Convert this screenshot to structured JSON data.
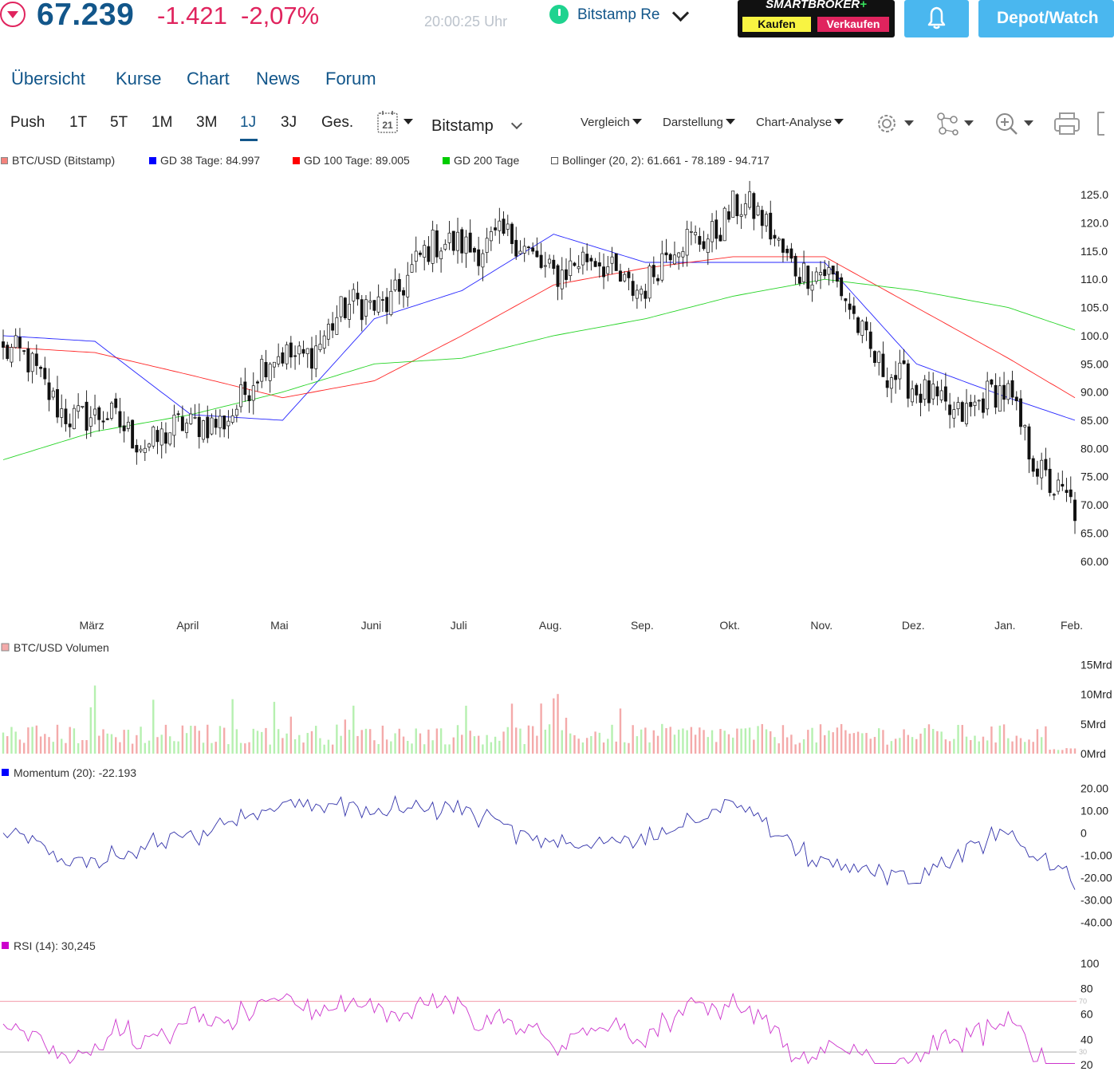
{
  "header": {
    "price": "67.239",
    "change_abs": "-1.421",
    "change_pct": "-2,07%",
    "time": "20:00:25 Uhr",
    "exchange": "Bitstamp Re",
    "smartbroker": {
      "title": "SMARTBROKER",
      "plus": "+",
      "buy": "Kaufen",
      "sell": "Verkaufen"
    },
    "depot_button": "Depot/Watch",
    "colors": {
      "brand": "#12568a",
      "negative": "#e0245e",
      "accent": "#4ab7ef",
      "live": "#1fd38f"
    }
  },
  "nav": {
    "items": [
      "Übersicht",
      "Kurse",
      "Chart",
      "News",
      "Forum"
    ]
  },
  "toolbar": {
    "ranges": [
      "Push",
      "1T",
      "5T",
      "1M",
      "3M",
      "1J",
      "3J",
      "Ges."
    ],
    "active_range": "1J",
    "calendar_day": "21",
    "exchange_select": "Bitstamp",
    "menus": [
      "Vergleich",
      "Darstellung",
      "Chart-Analyse"
    ],
    "icons": [
      "gear-icon",
      "network-icon",
      "zoom-icon",
      "print-icon"
    ]
  },
  "legend": [
    {
      "label": "BTC/USD (Bitstamp)",
      "color": "#f4837d"
    },
    {
      "label": "GD 38 Tage: 84.997",
      "color": "#0000ff"
    },
    {
      "label": "GD 100 Tage: 89.005",
      "color": "#ff0000"
    },
    {
      "label": "GD 200 Tage",
      "color": "#00cc00"
    },
    {
      "label": "Bollinger (20, 2): 61.661 - 78.189 - 94.717",
      "color": "#ffffff"
    }
  ],
  "chart_data": [
    {
      "type": "candlestick",
      "title": "BTC/USD (Bitstamp)",
      "ylim": [
        57,
        127
      ],
      "y_ticks": [
        "125.0",
        "120.0",
        "115.0",
        "110.0",
        "105.0",
        "100.0",
        "95.00",
        "90.00",
        "85.00",
        "80.00",
        "75.00",
        "70.00",
        "65.00",
        "60.00"
      ],
      "y_tick_values": [
        125,
        120,
        115,
        110,
        105,
        100,
        95,
        90,
        85,
        80,
        75,
        70,
        65,
        60
      ],
      "x_labels": [
        "März",
        "April",
        "Mai",
        "Juni",
        "Juli",
        "Aug.",
        "Sep.",
        "Okt.",
        "Nov.",
        "Dez.",
        "Jan.",
        "Feb."
      ],
      "months": [
        "Feb.",
        "März",
        "April",
        "Mai",
        "Juni",
        "Juli",
        "Aug.",
        "Sep.",
        "Okt.",
        "Nov.",
        "Dez.",
        "Jan.",
        "Feb."
      ],
      "close_by_month": [
        97,
        84,
        82,
        96,
        106,
        118,
        113,
        110,
        123,
        110,
        88,
        88,
        67.2
      ],
      "overlays": [
        {
          "name": "GD 38 Tage",
          "color": "#0000ff",
          "values": [
            100,
            99,
            86,
            85,
            103,
            108,
            118,
            113,
            113,
            113,
            95,
            89,
            85
          ]
        },
        {
          "name": "GD 100 Tage",
          "color": "#ff0000",
          "values": [
            98,
            97,
            93,
            89,
            92,
            100,
            109,
            112,
            114,
            114,
            105,
            96,
            89
          ]
        },
        {
          "name": "GD 200 Tage",
          "color": "#00cc00",
          "values": [
            78,
            83,
            86,
            90,
            95,
            96,
            100,
            103,
            107,
            110,
            108,
            105,
            101
          ]
        }
      ]
    },
    {
      "type": "bar",
      "title": "BTC/USD Volumen",
      "ylim": [
        0,
        16
      ],
      "y_ticks": [
        "15Mrd",
        "10Mrd",
        "5Mrd",
        "0Mrd"
      ],
      "y_tick_values": [
        15,
        10,
        5,
        0
      ],
      "unit": "Mrd",
      "colors": {
        "up": "#b6f0b0",
        "down": "#f4aaaa"
      }
    },
    {
      "type": "line",
      "title": "Momentum (20): -22.193",
      "ylim": [
        -42,
        22
      ],
      "y_ticks": [
        "20.00",
        "10.00",
        "0",
        "-10.00",
        "-20.00",
        "-30.00",
        "-40.00"
      ],
      "y_tick_values": [
        20,
        10,
        0,
        -10,
        -20,
        -30,
        -40
      ],
      "color": "#3333aa"
    },
    {
      "type": "line",
      "title": "RSI (14): 30,245",
      "ylim": [
        15,
        105
      ],
      "y_ticks": [
        "100",
        "80",
        "60",
        "40",
        "20"
      ],
      "y_tick_values": [
        100,
        80,
        60,
        40,
        20
      ],
      "levels": [
        70,
        30
      ],
      "level_labels": [
        "70",
        "30"
      ],
      "color": "#cc33cc"
    }
  ]
}
